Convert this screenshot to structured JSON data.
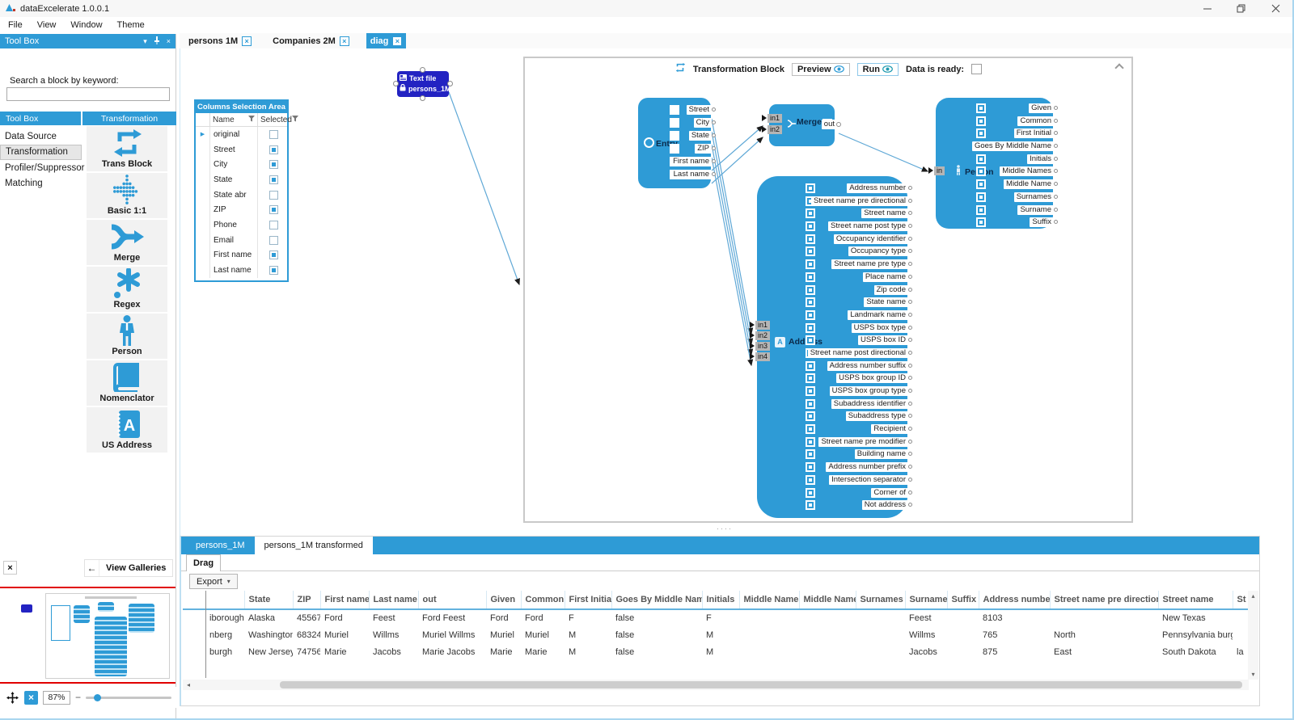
{
  "titlebar": {
    "app_title": "dataExcelerate 1.0.0.1"
  },
  "menu": [
    "File",
    "View",
    "Window",
    "Theme"
  ],
  "icons": {
    "close": "×",
    "caret_down": "▾",
    "left_arrow": "←",
    "row_marker": "▶",
    "minus": "−",
    "scroll_left": "◂",
    "scroll_up": "▴",
    "scroll_down": "▾",
    "splitter_dots": "····"
  },
  "toolbox": {
    "header": "Tool Box",
    "search_label": "Search a block by keyword:",
    "search_value": "",
    "panel_left_header": "Tool Box",
    "panel_right_header": "Transformation",
    "categories": [
      "Data Source",
      "Transformation",
      "Profiler/Suppressor",
      "Matching"
    ],
    "selected_category": "Transformation",
    "gallery": [
      {
        "label": "Trans Block",
        "icon": "trans-block-icon"
      },
      {
        "label": "Basic 1:1",
        "icon": "basic-1-1-icon"
      },
      {
        "label": "Merge",
        "icon": "merge-icon"
      },
      {
        "label": "Regex",
        "icon": "regex-icon"
      },
      {
        "label": "Person",
        "icon": "person-icon"
      },
      {
        "label": "Nomenclator",
        "icon": "nomenclator-book-icon"
      },
      {
        "label": "US Address",
        "icon": "us-address-book-icon"
      }
    ],
    "view_galleries": "View Galleries"
  },
  "doc_tabs": [
    {
      "label": "persons 1M",
      "active": false
    },
    {
      "label": "Companies 2M",
      "active": false
    },
    {
      "label": "diag",
      "active": true
    }
  ],
  "canvas": {
    "source_node": {
      "title": "Text file",
      "subtitle": "persons_1M"
    },
    "transformation_block": {
      "title": "Transformation Block",
      "preview": "Preview",
      "run": "Run",
      "data_ready": "Data is ready:"
    },
    "columns_area": {
      "title": "Columns Selection Area",
      "col_name": "Name",
      "col_selected": "Selected",
      "rows": [
        {
          "name": "original",
          "selected": false
        },
        {
          "name": "Street",
          "selected": true
        },
        {
          "name": "City",
          "selected": true
        },
        {
          "name": "State",
          "selected": true
        },
        {
          "name": "State abr",
          "selected": false
        },
        {
          "name": "ZIP",
          "selected": true
        },
        {
          "name": "Phone",
          "selected": false
        },
        {
          "name": "Email",
          "selected": false
        },
        {
          "name": "First name",
          "selected": true
        },
        {
          "name": "Last name",
          "selected": true
        }
      ]
    },
    "entry_block": {
      "label": "Entry",
      "fields": [
        {
          "name": "Street",
          "checked": false
        },
        {
          "name": "City",
          "checked": false
        },
        {
          "name": "State",
          "checked": false
        },
        {
          "name": "ZIP",
          "checked": false
        },
        {
          "name": "First name",
          "checked": true
        },
        {
          "name": "Last name",
          "checked": true
        }
      ]
    },
    "merge_block": {
      "label": "Merge",
      "inputs": [
        "in1",
        "in2"
      ],
      "output": "out"
    },
    "person_block": {
      "label": "Person",
      "input": "in",
      "outputs": [
        "Given",
        "Common",
        "First Initial",
        "Goes By Middle Name",
        "Initials",
        "Middle Names",
        "Middle Name",
        "Surnames",
        "Surname",
        "Suffix"
      ]
    },
    "address_block": {
      "label": "Address",
      "inputs": [
        "in1",
        "in2",
        "in3",
        "in4"
      ],
      "outputs": [
        "Address number",
        "Street name pre directional",
        "Street name",
        "Street name post type",
        "Occupancy identifier",
        "Occupancy type",
        "Street name pre type",
        "Place name",
        "Zip code",
        "State name",
        "Landmark name",
        "USPS box type",
        "USPS box ID",
        "Street name post directional",
        "Address number suffix",
        "USPS box group ID",
        "USPS box group type",
        "Subaddress identifier",
        "Subaddress type",
        "Recipient",
        "Street name pre modifier",
        "Building name",
        "Address number prefix",
        "Intersection separator",
        "Corner of",
        "Not address"
      ]
    }
  },
  "results": {
    "tabs": [
      {
        "label": "persons_1M",
        "active": false
      },
      {
        "label": "persons_1M transformed",
        "active": true
      }
    ],
    "drag_label": "Drag",
    "export_label": "Export",
    "table": {
      "headers": [
        "",
        "",
        "State",
        "ZIP",
        "First name",
        "Last name",
        "out",
        "Given",
        "Common",
        "First Initial",
        "Goes By Middle Name",
        "Initials",
        "Middle Names",
        "Middle Name",
        "Surnames",
        "Surname",
        "Suffix",
        "Address number",
        "Street name pre directional",
        "Street name",
        "St"
      ],
      "rows": [
        [
          "",
          "iborough",
          "Alaska",
          "45567",
          "Ford",
          "Feest",
          "Ford Feest",
          "Ford",
          "Ford",
          "F",
          "false",
          "F",
          "",
          "",
          "",
          "Feest",
          "",
          "8103",
          "",
          "New Texas",
          ""
        ],
        [
          "",
          "nberg",
          "Washington",
          "68324",
          "Muriel",
          "Willms",
          "Muriel Willms",
          "Muriel",
          "Muriel",
          "M",
          "false",
          "M",
          "",
          "",
          "",
          "Willms",
          "",
          "765",
          "North",
          "Pennsylvania burgh",
          ""
        ],
        [
          "",
          "burgh",
          "New Jersey",
          "74756",
          "Marie",
          "Jacobs",
          "Marie Jacobs",
          "Marie",
          "Marie",
          "M",
          "false",
          "M",
          "",
          "",
          "",
          "Jacobs",
          "",
          "875",
          "East",
          "South Dakota",
          "la"
        ]
      ]
    }
  },
  "statusbar": {
    "zoom_percent": "87%"
  }
}
